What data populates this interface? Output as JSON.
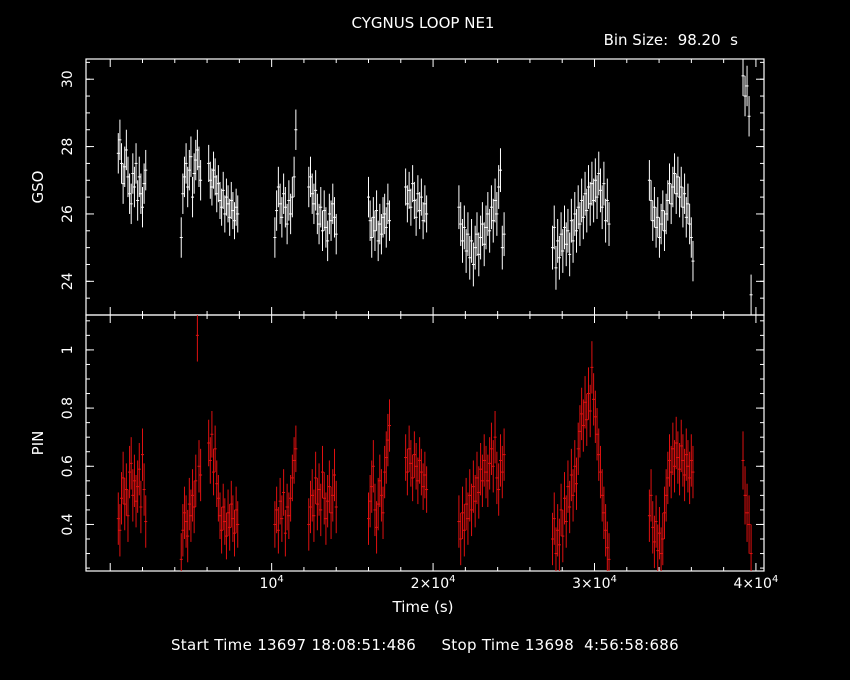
{
  "chart_data": {
    "type": "scatter",
    "title": "CYGNUS LOOP NE1",
    "bin_size_label": "Bin Size:  98.20  s",
    "xlabel": "Time (s)",
    "xlim": [
      -1500,
      40500
    ],
    "x_ticks": [
      {
        "value": 10000,
        "base": "10",
        "exp": "4"
      },
      {
        "value": 20000,
        "base": "2×10",
        "exp": "4"
      },
      {
        "value": 30000,
        "base": "3×10",
        "exp": "4"
      },
      {
        "value": 40000,
        "base": "4×10",
        "exp": "4"
      }
    ],
    "panels": [
      {
        "name": "GSO",
        "ylabel": "GSO",
        "ylim": [
          23,
          30.6
        ],
        "y_ticks": [
          24,
          26,
          28,
          30
        ],
        "color": "#ffffff",
        "segments": [
          {
            "start": 500,
            "end": 2200,
            "vals": [
              27.8,
              28.2,
              27.5,
              26.9,
              27.4,
              27.9,
              27.1,
              26.6,
              26.3,
              27.2,
              26.8,
              27.5,
              26.4,
              27.1,
              26.6,
              26.2,
              26.9,
              27.3
            ],
            "err": 0.6
          },
          {
            "start": 4400,
            "end": 5600,
            "vals": [
              25.3,
              26.6,
              27.1,
              27.5,
              26.8,
              27.3,
              27.7,
              26.5,
              27.2,
              27.6,
              27.9,
              27.4,
              27.0
            ],
            "err": 0.6
          },
          {
            "start": 6100,
            "end": 7900,
            "vals": [
              27.5,
              27.0,
              26.8,
              27.3,
              27.1,
              26.6,
              26.9,
              26.4,
              26.2,
              26.7,
              26.0,
              26.5,
              26.3,
              25.9,
              26.4,
              26.1,
              25.8,
              26.2,
              26.0
            ],
            "err": 0.55
          },
          {
            "start": 10200,
            "end": 11500,
            "vals": [
              25.3,
              26.1,
              26.8,
              26.3,
              25.9,
              26.6,
              26.2,
              25.7,
              26.4,
              26.0,
              26.5,
              27.1,
              28.5
            ],
            "err": 0.6
          },
          {
            "start": 12300,
            "end": 14000,
            "vals": [
              26.8,
              27.1,
              26.6,
              26.3,
              26.7,
              26.0,
              25.7,
              26.2,
              25.5,
              26.1,
              25.6,
              25.2,
              26.0,
              25.8,
              26.3,
              25.9,
              25.4
            ],
            "err": 0.6
          },
          {
            "start": 16000,
            "end": 17300,
            "vals": [
              26.5,
              25.8,
              25.3,
              25.9,
              25.5,
              26.1,
              25.2,
              25.7,
              25.4,
              25.9,
              26.0,
              25.6,
              26.3,
              25.8
            ],
            "err": 0.6
          },
          {
            "start": 18300,
            "end": 19600,
            "vals": [
              26.8,
              26.3,
              26.7,
              26.2,
              26.9,
              26.4,
              25.9,
              26.6,
              26.1,
              26.5,
              25.8,
              26.3,
              26.0
            ],
            "err": 0.55
          },
          {
            "start": 21600,
            "end": 24400,
            "vals": [
              26.2,
              25.7,
              25.2,
              25.6,
              24.9,
              25.4,
              24.7,
              25.2,
              24.5,
              25.0,
              25.4,
              24.8,
              25.3,
              25.7,
              25.1,
              25.6,
              26.0,
              25.5,
              26.2,
              25.8,
              26.4,
              26.0,
              26.8,
              27.3,
              25.0,
              25.4
            ],
            "err": 0.65
          },
          {
            "start": 27400,
            "end": 30900,
            "vals": [
              25.0,
              25.6,
              24.4,
              25.2,
              24.7,
              25.4,
              24.9,
              25.6,
              25.1,
              25.5,
              24.8,
              25.8,
              25.2,
              26.0,
              25.5,
              26.2,
              25.7,
              26.4,
              25.9,
              26.6,
              26.1,
              26.8,
              26.3,
              26.9,
              26.4,
              27.0,
              26.5,
              27.2,
              26.7,
              26.2,
              26.9,
              25.8,
              26.4,
              25.7
            ],
            "err": 0.65
          },
          {
            "start": 33400,
            "end": 36100,
            "vals": [
              27.0,
              26.4,
              25.8,
              26.2,
              25.6,
              25.9,
              25.3,
              25.7,
              26.1,
              25.5,
              26.0,
              26.4,
              26.9,
              26.3,
              26.8,
              27.2,
              26.6,
              27.1,
              26.5,
              26.8,
              26.2,
              26.6,
              25.9,
              26.3,
              25.7,
              25.3,
              24.6
            ],
            "err": 0.6
          },
          {
            "start": 39200,
            "end": 39700,
            "vals": [
              30.1,
              29.5,
              29.8,
              28.9,
              23.6
            ],
            "err": 0.6
          }
        ]
      },
      {
        "name": "PIN",
        "ylabel": "PIN",
        "ylim": [
          0.24,
          1.12
        ],
        "y_ticks": [
          0.4,
          0.6,
          0.8,
          1
        ],
        "color": "#e01010",
        "segments": [
          {
            "start": 500,
            "end": 2200,
            "vals": [
              0.42,
              0.38,
              0.49,
              0.56,
              0.47,
              0.52,
              0.43,
              0.58,
              0.61,
              0.5,
              0.55,
              0.48,
              0.53,
              0.59,
              0.46,
              0.64,
              0.52,
              0.41
            ],
            "err": 0.09
          },
          {
            "start": 4400,
            "end": 5600,
            "vals": [
              0.28,
              0.38,
              0.44,
              0.41,
              0.36,
              0.47,
              0.43,
              0.5,
              0.46,
              0.55,
              1.05,
              0.6,
              0.57
            ],
            "err": 0.09
          },
          {
            "start": 6100,
            "end": 7900,
            "vals": [
              0.68,
              0.62,
              0.71,
              0.58,
              0.66,
              0.54,
              0.49,
              0.43,
              0.38,
              0.46,
              0.41,
              0.36,
              0.44,
              0.39,
              0.47,
              0.42,
              0.37,
              0.45,
              0.4
            ],
            "err": 0.08
          },
          {
            "start": 10200,
            "end": 11500,
            "vals": [
              0.4,
              0.45,
              0.38,
              0.48,
              0.42,
              0.51,
              0.37,
              0.46,
              0.43,
              0.49,
              0.56,
              0.62,
              0.66
            ],
            "err": 0.08
          },
          {
            "start": 12300,
            "end": 14000,
            "vals": [
              0.4,
              0.46,
              0.5,
              0.43,
              0.56,
              0.47,
              0.52,
              0.45,
              0.58,
              0.49,
              0.42,
              0.48,
              0.53,
              0.44,
              0.5,
              0.57,
              0.46
            ],
            "err": 0.09
          },
          {
            "start": 16000,
            "end": 17300,
            "vals": [
              0.42,
              0.48,
              0.53,
              0.6,
              0.45,
              0.39,
              0.47,
              0.55,
              0.5,
              0.44,
              0.58,
              0.63,
              0.69,
              0.74
            ],
            "err": 0.09
          },
          {
            "start": 18300,
            "end": 19600,
            "vals": [
              0.63,
              0.58,
              0.66,
              0.61,
              0.56,
              0.64,
              0.6,
              0.55,
              0.62,
              0.58,
              0.53,
              0.57,
              0.52
            ],
            "err": 0.08
          },
          {
            "start": 21600,
            "end": 24400,
            "vals": [
              0.41,
              0.35,
              0.44,
              0.38,
              0.47,
              0.42,
              0.5,
              0.45,
              0.53,
              0.48,
              0.56,
              0.51,
              0.59,
              0.55,
              0.62,
              0.58,
              0.55,
              0.61,
              0.66,
              0.6,
              0.7,
              0.56,
              0.52,
              0.62,
              0.58,
              0.64
            ],
            "err": 0.09
          },
          {
            "start": 27400,
            "end": 30900,
            "vals": [
              0.35,
              0.42,
              0.3,
              0.38,
              0.33,
              0.45,
              0.36,
              0.49,
              0.41,
              0.53,
              0.46,
              0.57,
              0.5,
              0.6,
              0.54,
              0.66,
              0.72,
              0.78,
              0.74,
              0.82,
              0.76,
              0.85,
              0.79,
              0.94,
              0.83,
              0.77,
              0.71,
              0.64,
              0.58,
              0.5,
              0.44,
              0.38,
              0.32,
              0.28
            ],
            "err": 0.09
          },
          {
            "start": 33400,
            "end": 36100,
            "vals": [
              0.43,
              0.5,
              0.39,
              0.34,
              0.41,
              0.31,
              0.37,
              0.3,
              0.35,
              0.44,
              0.5,
              0.56,
              0.62,
              0.58,
              0.66,
              0.6,
              0.68,
              0.63,
              0.59,
              0.67,
              0.62,
              0.57,
              0.64,
              0.6,
              0.56,
              0.62,
              0.58
            ],
            "err": 0.09
          },
          {
            "start": 39200,
            "end": 39700,
            "vals": [
              0.62,
              0.5,
              0.44,
              0.4,
              0.3
            ],
            "err": 0.1
          }
        ]
      }
    ]
  },
  "footer": {
    "start_label": "Start Time",
    "start_value": "13697 18:08:51:486",
    "stop_label": "Stop Time",
    "stop_value": "13698  4:56:58:686"
  }
}
